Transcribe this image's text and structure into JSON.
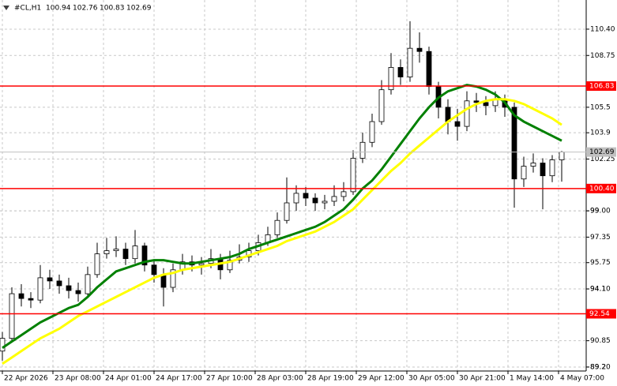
{
  "header": {
    "symbol": "#CL,H1",
    "ohlc": [
      100.94,
      102.76,
      100.83,
      102.69
    ]
  },
  "chart_data": {
    "type": "candlestick",
    "x": [
      0,
      3,
      6,
      9,
      12,
      15,
      18,
      21,
      24,
      27,
      30,
      33,
      36,
      39,
      42,
      45,
      48,
      51,
      54,
      57,
      60,
      63,
      66,
      69,
      72,
      75,
      78,
      81,
      84,
      87,
      90,
      93,
      96,
      99,
      102,
      105,
      108,
      111,
      114,
      117,
      120,
      123,
      126,
      129,
      132,
      135,
      138,
      141,
      144,
      147,
      150,
      153,
      156,
      159,
      162,
      165,
      168,
      171,
      174,
      177
    ],
    "open": [
      90.2,
      91.0,
      93.8,
      93.5,
      93.4,
      94.8,
      94.6,
      94.3,
      94.0,
      93.8,
      95.0,
      96.3,
      96.5,
      96.6,
      96.0,
      96.8,
      95.6,
      95.0,
      94.2,
      95.3,
      95.8,
      95.6,
      95.7,
      96.0,
      95.3,
      95.9,
      96.1,
      96.5,
      97.0,
      97.5,
      98.4,
      99.5,
      100.1,
      99.8,
      99.5,
      99.6,
      99.9,
      100.2,
      102.3,
      103.3,
      104.6,
      106.6,
      108.0,
      107.4,
      109.2,
      109.0,
      106.8,
      105.5,
      104.6,
      104.3,
      105.9,
      105.8,
      105.6,
      106.0,
      105.5,
      101.0,
      101.8,
      102.0,
      101.2,
      102.2
    ],
    "high": [
      91.4,
      94.2,
      94.4,
      93.9,
      95.6,
      95.3,
      95.0,
      94.8,
      94.5,
      95.5,
      97.0,
      97.3,
      97.4,
      97.0,
      97.8,
      97.0,
      95.9,
      95.4,
      95.7,
      96.3,
      96.2,
      96.1,
      96.6,
      96.3,
      96.5,
      96.9,
      97.0,
      97.5,
      98.0,
      98.9,
      101.1,
      100.6,
      100.5,
      100.1,
      100.0,
      100.6,
      100.8,
      102.8,
      103.9,
      105.1,
      107.2,
      108.9,
      108.5,
      110.9,
      110.2,
      109.3,
      107.1,
      106.0,
      105.4,
      106.5,
      106.4,
      106.2,
      106.5,
      106.3,
      105.8,
      102.4,
      102.6,
      102.3,
      102.5,
      102.76
    ],
    "low": [
      89.6,
      90.8,
      93.0,
      92.9,
      93.2,
      94.1,
      93.8,
      93.5,
      93.3,
      93.6,
      94.8,
      96.0,
      96.1,
      95.6,
      95.7,
      95.2,
      94.5,
      93.0,
      93.9,
      95.0,
      95.2,
      95.0,
      95.4,
      94.7,
      95.1,
      95.7,
      95.8,
      96.2,
      96.8,
      97.3,
      98.2,
      99.0,
      99.3,
      99.0,
      99.1,
      99.3,
      99.6,
      100.0,
      102.0,
      103.0,
      104.4,
      106.3,
      106.9,
      107.1,
      108.3,
      106.3,
      104.8,
      103.8,
      103.4,
      104.0,
      105.2,
      105.0,
      105.2,
      104.9,
      99.2,
      100.5,
      101.4,
      99.1,
      100.8,
      100.83
    ],
    "close": [
      91.0,
      93.8,
      93.5,
      93.4,
      94.8,
      94.6,
      94.3,
      94.0,
      93.8,
      95.0,
      96.3,
      96.5,
      96.6,
      96.0,
      96.8,
      95.6,
      95.0,
      94.2,
      95.3,
      95.8,
      95.6,
      95.7,
      96.0,
      95.3,
      95.9,
      96.1,
      96.5,
      97.0,
      97.5,
      98.4,
      99.5,
      100.1,
      99.8,
      99.5,
      99.6,
      99.9,
      100.2,
      102.3,
      103.3,
      104.6,
      106.6,
      108.0,
      107.4,
      109.2,
      109.0,
      106.8,
      105.5,
      104.6,
      104.3,
      105.9,
      105.8,
      105.6,
      106.0,
      105.5,
      101.0,
      101.8,
      102.0,
      101.2,
      102.2,
      102.69
    ],
    "overlays": [
      {
        "color": "#008000",
        "values": [
          90.4,
          90.8,
          91.2,
          91.6,
          92.0,
          92.3,
          92.6,
          92.9,
          93.1,
          93.6,
          94.2,
          94.7,
          95.2,
          95.4,
          95.6,
          95.8,
          95.9,
          95.9,
          95.8,
          95.7,
          95.7,
          95.8,
          95.9,
          96.0,
          96.1,
          96.3,
          96.6,
          96.8,
          97.0,
          97.2,
          97.4,
          97.6,
          97.8,
          98.0,
          98.3,
          98.7,
          99.1,
          99.7,
          100.4,
          100.9,
          101.6,
          102.4,
          103.2,
          104.0,
          104.8,
          105.5,
          106.1,
          106.5,
          106.7,
          106.9,
          106.8,
          106.6,
          106.3,
          105.8,
          105.0,
          104.6,
          104.3,
          104.0,
          103.7,
          103.4
        ]
      },
      {
        "color": "#ffff00",
        "values": [
          89.4,
          89.8,
          90.2,
          90.6,
          91.0,
          91.3,
          91.6,
          92.0,
          92.4,
          92.7,
          93.0,
          93.3,
          93.6,
          93.9,
          94.2,
          94.5,
          94.8,
          95.0,
          95.1,
          95.3,
          95.4,
          95.5,
          95.6,
          95.7,
          95.8,
          96.0,
          96.2,
          96.4,
          96.6,
          96.8,
          97.1,
          97.3,
          97.5,
          97.7,
          98.0,
          98.3,
          98.7,
          99.1,
          99.7,
          100.3,
          100.9,
          101.5,
          102.0,
          102.6,
          103.1,
          103.6,
          104.1,
          104.6,
          105.0,
          105.4,
          105.7,
          105.9,
          106.0,
          106.0,
          105.9,
          105.7,
          105.4,
          105.1,
          104.8,
          104.4
        ]
      }
    ],
    "xlim": [
      -0.75,
      184.75
    ],
    "xticks": [
      {
        "value": 0,
        "label": "22 Apr 2026"
      },
      {
        "value": 16,
        "label": "23 Apr 08:00"
      },
      {
        "value": 32,
        "label": "24 Apr 01:00"
      },
      {
        "value": 48,
        "label": "24 Apr 17:00"
      },
      {
        "value": 64,
        "label": "27 Apr 10:00"
      },
      {
        "value": 80,
        "label": "28 Apr 03:00"
      },
      {
        "value": 96,
        "label": "28 Apr 19:00"
      },
      {
        "value": 112,
        "label": "29 Apr 12:00"
      },
      {
        "value": 128,
        "label": "30 Apr 05:00"
      },
      {
        "value": 144,
        "label": "30 Apr 21:00"
      },
      {
        "value": 160,
        "label": "1 May 14:00"
      },
      {
        "value": 176,
        "label": "4 May 07:00"
      }
    ],
    "ylim": [
      88.95,
      112.23
    ],
    "yticks": [
      {
        "value": 110.4,
        "label": "110.40"
      },
      108.75,
      105.5,
      103.9,
      102.25,
      99,
      {
        "value": 99,
        "label": "99.00"
      },
      97.35,
      95.75,
      94.1,
      {
        "value": 94.1,
        "label": "94.10"
      },
      90.85,
      89.2,
      {
        "value": 89.2,
        "label": "89.20"
      }
    ],
    "levels": [
      106.83,
      {
        "value": 100.4,
        "label": "100.40"
      },
      92.54
    ],
    "level_color": "#ff0000",
    "last_price": 102.69,
    "grid": true
  }
}
